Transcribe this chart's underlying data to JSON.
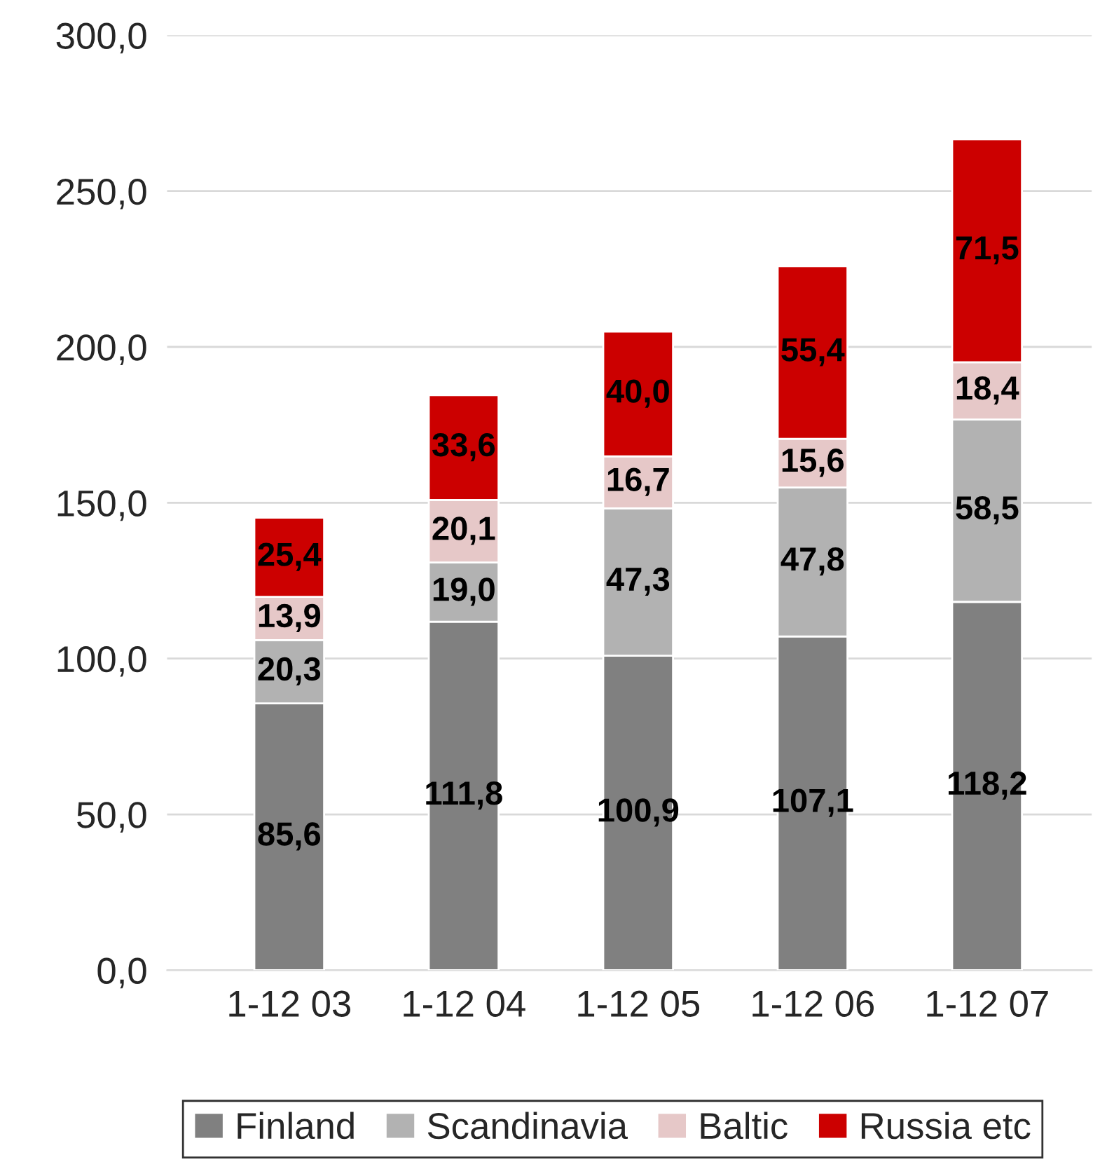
{
  "chart_data": {
    "type": "bar",
    "stacked": true,
    "categories": [
      "1-12 03",
      "1-12 04",
      "1-12 05",
      "1-12 06",
      "1-12 07"
    ],
    "series": [
      {
        "name": "Finland",
        "color": "#808080",
        "values": [
          85.6,
          111.8,
          100.9,
          107.1,
          118.2
        ],
        "value_labels": [
          "85,6",
          "111,8",
          "100,9",
          "107,1",
          "118,2"
        ]
      },
      {
        "name": "Scandinavia",
        "color": "#b2b2b2",
        "values": [
          20.3,
          19.0,
          47.3,
          47.8,
          58.5
        ],
        "value_labels": [
          "20,3",
          "19,0",
          "47,3",
          "47,8",
          "58,5"
        ]
      },
      {
        "name": "Baltic",
        "color": "#e6c8c8",
        "values": [
          13.9,
          20.1,
          16.7,
          15.6,
          18.4
        ],
        "value_labels": [
          "13,9",
          "20,1",
          "16,7",
          "15,6",
          "18,4"
        ]
      },
      {
        "name": "Russia etc",
        "color": "#cc0000",
        "values": [
          25.4,
          33.6,
          40.0,
          55.4,
          71.5
        ],
        "value_labels": [
          "25,4",
          "33,6",
          "40,0",
          "55,4",
          "71,5"
        ]
      }
    ],
    "ylim": [
      0,
      300
    ],
    "yticks": [
      {
        "value": 0,
        "label": "0,0"
      },
      {
        "value": 50,
        "label": "50,0"
      },
      {
        "value": 100,
        "label": "100,0"
      },
      {
        "value": 150,
        "label": "150,0"
      },
      {
        "value": 200,
        "label": "200,0"
      },
      {
        "value": 250,
        "label": "250,0"
      },
      {
        "value": 300,
        "label": "300,0"
      }
    ],
    "grid": "y",
    "legend": "bottom"
  }
}
